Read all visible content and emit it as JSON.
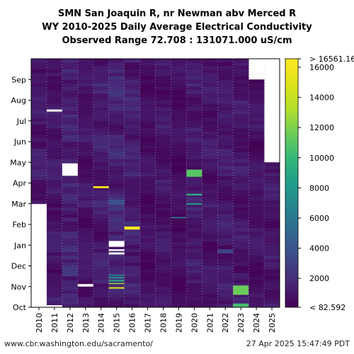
{
  "title_lines": [
    "SMN San Joaquin R, nr Newman abv Merced R",
    "WY 2010-2025 Daily Average Electrical Conductivity",
    "Observed Range 72.708 : 131071.000 uS/cm"
  ],
  "footer": {
    "source": "www.cbr.washington.edu/sacramento/",
    "timestamp": "27 Apr 2025 15:47:49 PDT"
  },
  "chart_data": {
    "type": "heatmap",
    "title": "SMN San Joaquin R, nr Newman abv Merced R WY 2010-2025 Daily Average Electrical Conductivity Observed Range 72.708 : 131071.000 uS/cm",
    "x": [
      "2010",
      "2011",
      "2012",
      "2013",
      "2014",
      "2015",
      "2016",
      "2017",
      "2018",
      "2019",
      "2020",
      "2021",
      "2022",
      "2023",
      "2024",
      "2025"
    ],
    "y_months": [
      "Oct",
      "Nov",
      "Dec",
      "Jan",
      "Feb",
      "Mar",
      "Apr",
      "May",
      "Jun",
      "Jul",
      "Aug",
      "Sep"
    ],
    "colorbar": {
      "ticks": [
        2000,
        4000,
        6000,
        8000,
        10000,
        12000,
        14000,
        16000
      ],
      "tick_labels": [
        "2000",
        "4000",
        "6000",
        "8000",
        "10000",
        "12000",
        "14000",
        "16000"
      ],
      "min": 82.592,
      "max": 16561.16,
      "min_label": "< 82.592",
      "max_label": "> 16561.16",
      "colormap": "viridis"
    },
    "base_values": [
      1100,
      1000,
      1400,
      900,
      1200,
      1500,
      1300,
      700,
      900,
      600,
      1100,
      900,
      1100,
      1000,
      800,
      1000
    ],
    "data_start_month": [
      5.0,
      0,
      0,
      0,
      0,
      0,
      0,
      0,
      0,
      0,
      0,
      0,
      0,
      0,
      0,
      0
    ],
    "data_end_month": [
      12,
      12,
      12,
      12,
      12,
      12,
      12,
      12,
      12,
      12,
      12,
      12,
      12,
      12,
      11,
      7.0
    ],
    "gaps": [
      {
        "year": "2011",
        "start": 0.0,
        "end": 0.1
      },
      {
        "year": "2011",
        "start": 9.45,
        "end": 9.55
      },
      {
        "year": "2012",
        "start": 6.35,
        "end": 6.95
      },
      {
        "year": "2013",
        "start": 1.0,
        "end": 1.12
      },
      {
        "year": "2015",
        "start": 2.55,
        "end": 2.65
      },
      {
        "year": "2015",
        "start": 2.72,
        "end": 2.8
      },
      {
        "year": "2015",
        "start": 2.92,
        "end": 3.2
      }
    ],
    "highlights": [
      {
        "year": "2014",
        "start": 5.75,
        "end": 5.85,
        "value": 16000
      },
      {
        "year": "2015",
        "start": 0.9,
        "end": 0.97,
        "value": 15000
      },
      {
        "year": "2015",
        "start": 1.12,
        "end": 1.17,
        "value": 12500
      },
      {
        "year": "2015",
        "start": 1.25,
        "end": 1.32,
        "value": 9000
      },
      {
        "year": "2015",
        "start": 1.4,
        "end": 1.46,
        "value": 8000
      },
      {
        "year": "2015",
        "start": 1.52,
        "end": 1.57,
        "value": 7500
      },
      {
        "year": "2016",
        "start": 3.75,
        "end": 3.9,
        "value": 16200
      },
      {
        "year": "2020",
        "start": 6.3,
        "end": 6.65,
        "value": 11000
      },
      {
        "year": "2020",
        "start": 5.4,
        "end": 5.48,
        "value": 9500
      },
      {
        "year": "2020",
        "start": 4.95,
        "end": 5.02,
        "value": 8500
      },
      {
        "year": "2019",
        "start": 4.3,
        "end": 4.36,
        "value": 6000
      },
      {
        "year": "2023",
        "start": 0.6,
        "end": 1.05,
        "value": 11500
      },
      {
        "year": "2023",
        "start": 0.0,
        "end": 0.18,
        "value": 10500
      },
      {
        "year": "2015",
        "start": 4.95,
        "end": 5.2,
        "value": 3800
      },
      {
        "year": "2012",
        "start": 1.5,
        "end": 2.0,
        "value": 2500
      },
      {
        "year": "2022",
        "start": 2.6,
        "end": 2.8,
        "value": 3000
      }
    ]
  }
}
